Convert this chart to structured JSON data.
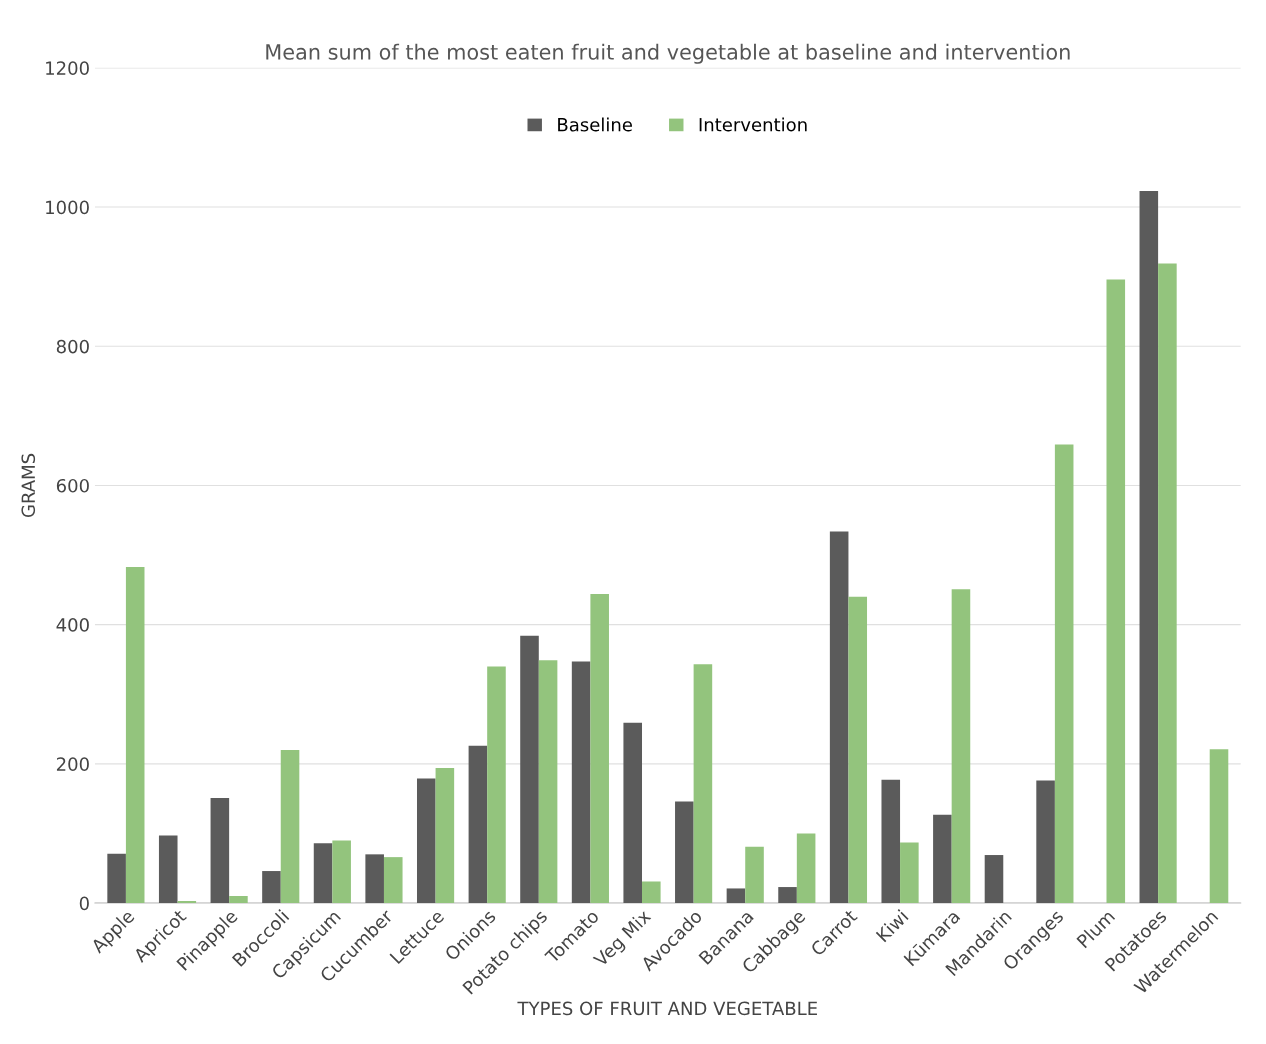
{
  "chart_data": {
    "type": "bar",
    "title": "Mean sum of the most eaten fruit and vegetable at baseline and intervention",
    "xlabel": "TYPES OF FRUIT AND VEGETABLE",
    "ylabel": "GRAMS",
    "categories": [
      "Apple",
      "Apricot",
      "Pinapple",
      "Broccoli",
      "Capsicum",
      "Cucumber",
      "Lettuce",
      "Onions",
      "Potato chips",
      "Tomato",
      "Veg Mix",
      "Avocado",
      "Banana",
      "Cabbage",
      "Carrot",
      "Kiwi",
      "Kūmara",
      "Mandarin",
      "Oranges",
      "Plum",
      "Potatoes",
      "Watermelon"
    ],
    "series": [
      {
        "name": "Baseline",
        "color": "#5b5b5b",
        "values": [
          71,
          97,
          151,
          46,
          86,
          70,
          179,
          226,
          384,
          347,
          259,
          146,
          21,
          23,
          534,
          177,
          127,
          69,
          176,
          0,
          1023,
          0
        ]
      },
      {
        "name": "Intervention",
        "color": "#93c47d",
        "values": [
          483,
          3,
          10,
          220,
          90,
          66,
          194,
          340,
          349,
          444,
          31,
          343,
          81,
          100,
          440,
          87,
          451,
          0,
          659,
          896,
          919,
          221
        ]
      }
    ],
    "ylim": [
      0,
      1200
    ],
    "yticks": [
      0,
      200,
      400,
      600,
      800,
      1000,
      1200
    ],
    "grid": "y",
    "legend": "top"
  }
}
